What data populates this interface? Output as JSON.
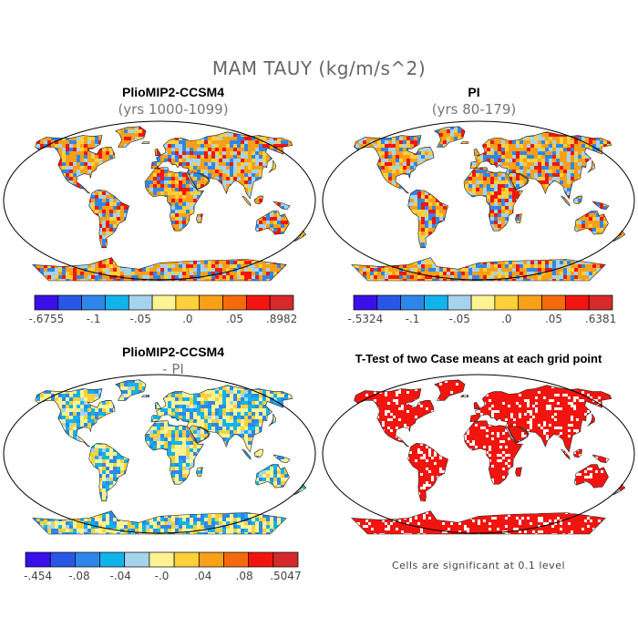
{
  "main_title": "MAM TAUY (kg/m/s^2)",
  "panels": {
    "top_left": {
      "title": "PlioMIP2-CCSM4",
      "subtitle": "(yrs 1000-1099)"
    },
    "top_right": {
      "title": "PI",
      "subtitle": "(yrs 80-179)"
    },
    "bottom_left": {
      "title": "PlioMIP2-CCSM4",
      "subtitle": "- PI"
    },
    "bottom_right": {
      "title": "T-Test of two Case means at each grid point",
      "note": "Cells are significant at 0.1 level"
    }
  },
  "colorbars": {
    "top_left": {
      "colors": [
        "#3b10e8",
        "#2a56e6",
        "#2f86ea",
        "#12b3ea",
        "#a5d3ec",
        "#fdf392",
        "#fcd03a",
        "#f7a018",
        "#f46a0c",
        "#f2150f",
        "#d42a2b"
      ],
      "labels": [
        "-.6755",
        "-.1",
        "-.05",
        ".0",
        ".05",
        ".8982"
      ]
    },
    "top_right": {
      "colors": [
        "#3b10e8",
        "#2a56e6",
        "#2f86ea",
        "#12b3ea",
        "#a5d3ec",
        "#fdf392",
        "#fcd03a",
        "#f7a018",
        "#f46a0c",
        "#f2150f",
        "#d42a2b"
      ],
      "labels": [
        "-.5324",
        "-.1",
        "-.05",
        ".0",
        ".05",
        ".6381"
      ]
    },
    "bottom_left": {
      "colors": [
        "#3b10e8",
        "#2a56e6",
        "#2f86ea",
        "#12b3ea",
        "#a5d3ec",
        "#fdf392",
        "#fcd03a",
        "#f7a018",
        "#f46a0c",
        "#f2150f",
        "#d42a2b"
      ],
      "labels": [
        "-.454",
        "-.08",
        "-.04",
        "-.0",
        ".04",
        ".08",
        ".5047"
      ]
    }
  },
  "map_colors": {
    "top_left": [
      "#f7a018",
      "#f46a0c",
      "#fcd03a",
      "#2f86ea",
      "#a5d3ec",
      "#f2150f"
    ],
    "top_right": [
      "#f7a018",
      "#f46a0c",
      "#fcd03a",
      "#2f86ea",
      "#a5d3ec",
      "#f2150f"
    ],
    "bottom_left": [
      "#fdf392",
      "#a5d3ec",
      "#12b3ea",
      "#fcd03a",
      "#2f86ea"
    ],
    "bottom_right": [
      "#f2150f"
    ]
  }
}
